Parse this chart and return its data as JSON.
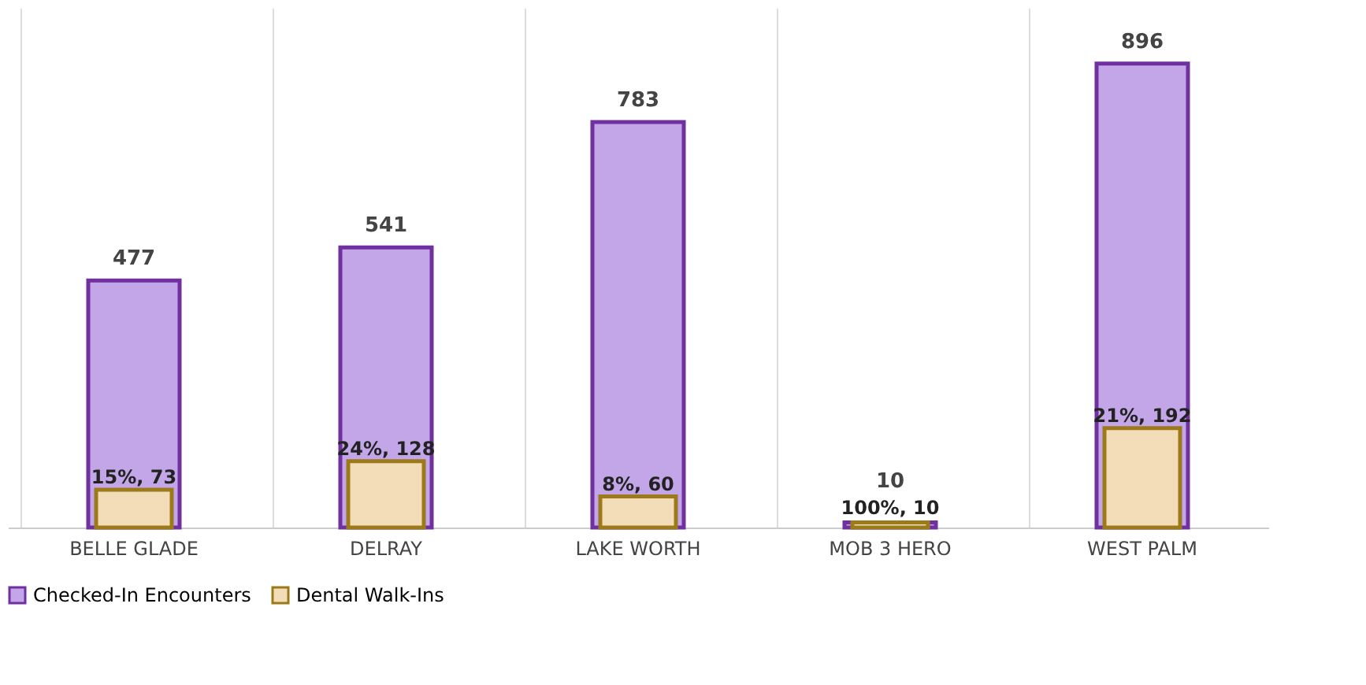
{
  "chart_data": {
    "type": "bar",
    "categories": [
      "BELLE GLADE",
      "DELRAY",
      "LAKE WORTH",
      "MOB 3 HERO",
      "WEST PALM"
    ],
    "series": [
      {
        "name": "Checked-In Encounters",
        "color": "#c3a6e8",
        "values": [
          477,
          541,
          783,
          10,
          896
        ],
        "value_labels": [
          "477",
          "541",
          "783",
          "10",
          "896"
        ]
      },
      {
        "name": "Dental Walk-Ins",
        "color": "#f3dcb8",
        "values": [
          73,
          128,
          60,
          10,
          192
        ],
        "value_labels": [
          "15%, 73",
          "24%, 128",
          "8%, 60",
          "100%, 10",
          "21%, 192"
        ]
      }
    ],
    "grid": "x",
    "legend": "bottom"
  }
}
